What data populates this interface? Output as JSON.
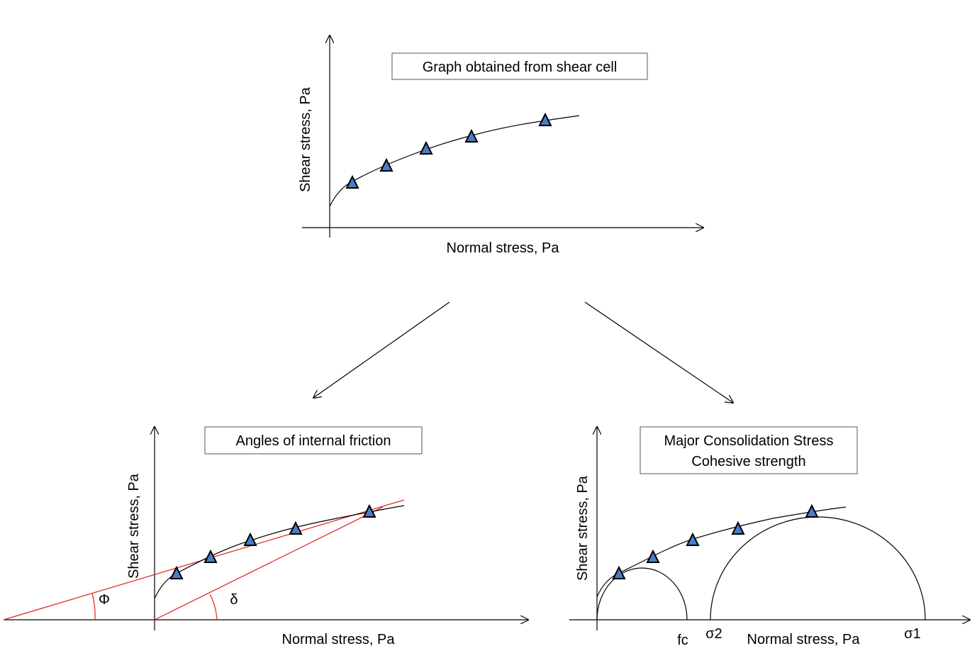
{
  "panels": {
    "top": {
      "title": "Graph obtained from shear cell",
      "xlabel": "Normal stress, Pa",
      "ylabel": "Shear stress, Pa"
    },
    "bottom_left": {
      "title": "Angles of internal friction",
      "xlabel": "Normal stress, Pa",
      "ylabel": "Shear stress, Pa",
      "angle_phi": "Φ",
      "angle_delta": "δ"
    },
    "bottom_right": {
      "title_line1": "Major Consolidation Stress",
      "title_line2": "Cohesive strength",
      "xlabel": "Normal stress, Pa",
      "ylabel": "Shear stress, Pa",
      "label_fc": "fc",
      "label_sigma2": "σ2",
      "label_sigma1": "σ1"
    }
  },
  "colors": {
    "marker_fill": "#4a7cc7",
    "marker_stroke": "#000000",
    "tangent_line": "#e0201b",
    "curve": "#000000",
    "box_border": "#555555"
  }
}
